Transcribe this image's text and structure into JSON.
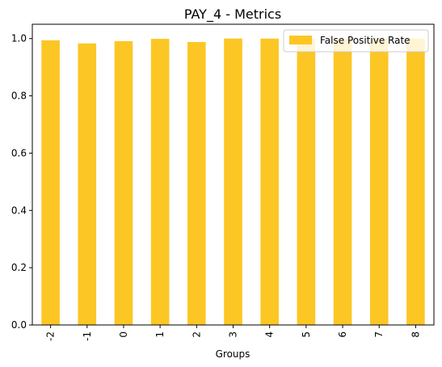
{
  "chart_data": {
    "type": "bar",
    "title": "PAY_4 - Metrics",
    "xlabel": "Groups",
    "ylabel": "",
    "categories": [
      "-2",
      "-1",
      "0",
      "1",
      "2",
      "3",
      "4",
      "5",
      "6",
      "7",
      "8"
    ],
    "series": [
      {
        "name": "False Positive Rate",
        "color": "#fcc624",
        "values": [
          0.994,
          0.983,
          0.991,
          0.999,
          0.988,
          1.0,
          1.0,
          1.0,
          1.0,
          1.0,
          1.0
        ]
      }
    ],
    "ylim": [
      0,
      1.05
    ],
    "yticks": [
      "0.0",
      "0.2",
      "0.4",
      "0.6",
      "0.8",
      "1.0"
    ],
    "grid": false,
    "legend_position": "top-right"
  }
}
